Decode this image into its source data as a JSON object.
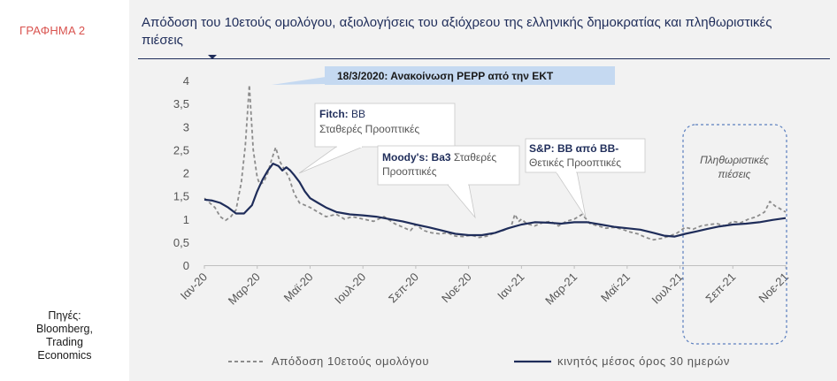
{
  "figure_label": "ΓΡΑΦΗΜΑ 2",
  "sources": [
    "Πηγές:",
    "Bloomberg,",
    "Trading",
    "Economics"
  ],
  "title": "Απόδοση του 10ετούς ομολόγου, αξιολογήσεις του αξιόχρεου της ελληνικής δημοκρατίας  και πληθωριστικές πιέσεις",
  "colors": {
    "yield": "#8c8c8c",
    "ma": "#1f2d5a",
    "title": "#1f2d5a",
    "figure_label": "#d9534f",
    "highlight": "#c5d9f1"
  },
  "annotations": {
    "pepp": "18/3/2020: Ανακοίνωση PEPP από την ΕΚΤ",
    "fitch_agency": "Fitch:",
    "fitch_rating": " BB",
    "fitch_outlook": "Σταθερές Προοπτικές",
    "moodys_agency": "Moody's:",
    "moodys_rating": " Ba3",
    "moodys_outlook_1": " Σταθερές",
    "moodys_outlook_2": "Προοπτικές",
    "sp_agency": "S&P:",
    "sp_rating": " BB από BB-",
    "sp_outlook": "Θετικές Προοπτικές",
    "inflation_1": "Πληθωριστικές",
    "inflation_2": "πιέσεις"
  },
  "chart_data": {
    "type": "line",
    "title": "",
    "ylim": [
      0,
      4
    ],
    "yticks": [
      "0",
      "0,5",
      "1",
      "1,5",
      "2",
      "2,5",
      "3",
      "3,5",
      "4"
    ],
    "xticks": [
      "Ιαν-20",
      "Μαρ-20",
      "Μαϊ-20",
      "Ιουλ-20",
      "Σεπ-20",
      "Νοε-20",
      "Ιαν-21",
      "Μαρ-21",
      "Μαϊ-21",
      "Ιουλ-21",
      "Σεπ-21",
      "Νοε-21"
    ],
    "legend_position": "bottom",
    "series": [
      {
        "name": "Απόδοση 10ετούς ομολόγου",
        "style": "dashed",
        "x": [
          0,
          0.2,
          0.4,
          0.6,
          0.8,
          1.0,
          1.2,
          1.4,
          1.55,
          1.7,
          1.85,
          2.0,
          2.1,
          2.25,
          2.4,
          2.55,
          2.7,
          2.85,
          3.0,
          3.2,
          3.4,
          3.6,
          3.8,
          4.0,
          4.3,
          4.6,
          5.0,
          5.3,
          5.6,
          6.0,
          6.4,
          6.8,
          7.2,
          7.6,
          7.8,
          8.0,
          8.3,
          8.6,
          8.9,
          9.2,
          9.5,
          9.8,
          10.1,
          10.4,
          10.7,
          11.0,
          11.3,
          11.6,
          11.75,
          11.9,
          12.0,
          12.1,
          12.2,
          12.5,
          12.8,
          13.1,
          13.4,
          13.7,
          14.0,
          14.3,
          14.6,
          14.9,
          15.2,
          15.5,
          15.8,
          16.1,
          16.4,
          16.7,
          17.0,
          17.3,
          17.6,
          17.9,
          18.2,
          18.5,
          18.8,
          19.1,
          19.4,
          19.7,
          20.0,
          20.3,
          20.6,
          20.9,
          21.2,
          21.4,
          21.6,
          21.8,
          22.0
        ],
        "values": [
          1.45,
          1.35,
          1.25,
          1.05,
          0.97,
          1.05,
          1.2,
          1.8,
          2.6,
          3.9,
          2.5,
          1.9,
          1.75,
          1.8,
          2.0,
          2.3,
          2.55,
          2.25,
          2.1,
          1.9,
          1.55,
          1.35,
          1.3,
          1.25,
          1.15,
          1.05,
          1.1,
          1.0,
          1.05,
          1.0,
          0.95,
          1.05,
          0.9,
          0.8,
          0.75,
          0.88,
          0.75,
          0.7,
          0.68,
          0.7,
          0.63,
          0.62,
          0.65,
          0.6,
          0.63,
          0.7,
          0.75,
          0.82,
          1.1,
          0.95,
          1.0,
          0.95,
          0.9,
          0.85,
          0.92,
          0.95,
          0.85,
          0.95,
          1.0,
          1.1,
          0.9,
          0.85,
          0.8,
          0.82,
          0.78,
          0.72,
          0.68,
          0.6,
          0.55,
          0.58,
          0.63,
          0.7,
          0.82,
          0.78,
          0.85,
          0.88,
          0.9,
          0.85,
          0.95,
          0.92,
          1.0,
          1.05,
          1.15,
          1.38,
          1.28,
          1.22,
          1.15
        ]
      },
      {
        "name": "κινητός μέσος όρος 30 ημερών",
        "style": "solid",
        "x": [
          0,
          0.3,
          0.6,
          0.9,
          1.2,
          1.5,
          1.8,
          2.0,
          2.2,
          2.4,
          2.6,
          2.8,
          2.95,
          3.1,
          3.25,
          3.4,
          3.6,
          3.8,
          4.0,
          4.3,
          4.6,
          5.0,
          5.5,
          6.0,
          6.5,
          7.0,
          7.5,
          8.0,
          8.5,
          9.0,
          9.5,
          10.0,
          10.5,
          11.0,
          11.5,
          12.0,
          12.5,
          13.0,
          13.5,
          14.0,
          14.5,
          15.0,
          15.5,
          16.0,
          16.5,
          17.0,
          17.4,
          17.8,
          18.2,
          18.6,
          19.0,
          19.5,
          20.0,
          20.5,
          21.0,
          21.5,
          22.0
        ],
        "values": [
          1.42,
          1.4,
          1.35,
          1.25,
          1.12,
          1.12,
          1.3,
          1.6,
          1.85,
          2.05,
          2.2,
          2.15,
          2.05,
          2.12,
          2.05,
          1.95,
          1.8,
          1.6,
          1.45,
          1.35,
          1.25,
          1.15,
          1.1,
          1.08,
          1.05,
          1.0,
          0.95,
          0.88,
          0.82,
          0.75,
          0.68,
          0.65,
          0.65,
          0.7,
          0.8,
          0.88,
          0.93,
          0.92,
          0.9,
          0.93,
          0.93,
          0.88,
          0.83,
          0.8,
          0.77,
          0.7,
          0.64,
          0.62,
          0.68,
          0.73,
          0.78,
          0.84,
          0.88,
          0.9,
          0.93,
          0.98,
          1.02
        ]
      }
    ]
  }
}
